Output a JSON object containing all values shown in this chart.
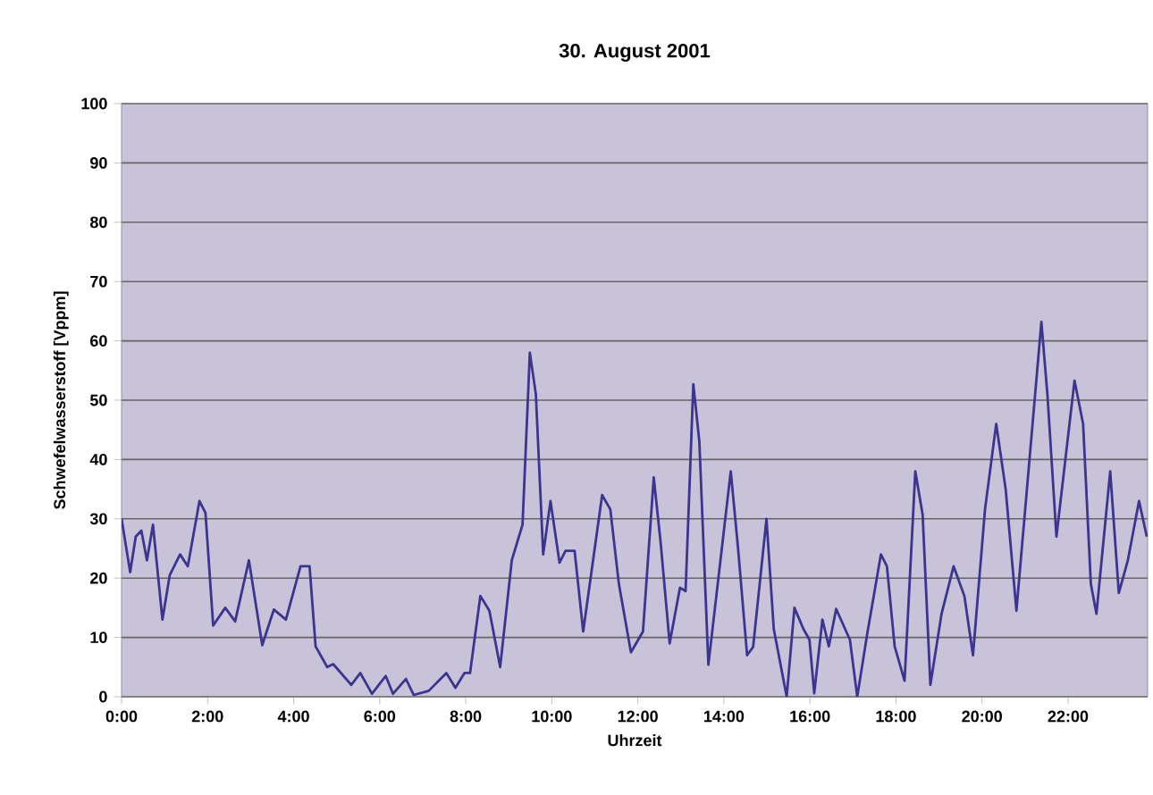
{
  "chart_data": {
    "type": "line",
    "title": "30. August 2001",
    "xlabel": "Uhrzeit",
    "ylabel": "Schwefelwasserstoff [Vppm]",
    "xlim": [
      0,
      23.85
    ],
    "ylim": [
      0,
      100
    ],
    "yticks": [
      0,
      10,
      20,
      30,
      40,
      50,
      60,
      70,
      80,
      90,
      100
    ],
    "xticks": [
      {
        "value": 0,
        "label": "0:00"
      },
      {
        "value": 2,
        "label": "2:00"
      },
      {
        "value": 4,
        "label": "4:00"
      },
      {
        "value": 6,
        "label": "6:00"
      },
      {
        "value": 8,
        "label": "8:00"
      },
      {
        "value": 10,
        "label": "10:00"
      },
      {
        "value": 12,
        "label": "12:00"
      },
      {
        "value": 14,
        "label": "14:00"
      },
      {
        "value": 16,
        "label": "16:00"
      },
      {
        "value": 18,
        "label": "18:00"
      },
      {
        "value": 20,
        "label": "20:00"
      },
      {
        "value": 22,
        "label": "22:00"
      }
    ],
    "grid": "y",
    "marker": "none",
    "line_style": "solid",
    "series": [
      {
        "color": "#3b3590",
        "x": [
          0,
          0.2,
          0.33,
          0.46,
          0.59,
          0.73,
          0.95,
          1.12,
          1.36,
          1.54,
          1.81,
          1.95,
          2.13,
          2.41,
          2.64,
          2.96,
          3.27,
          3.54,
          3.82,
          4.16,
          4.37,
          4.51,
          4.78,
          4.92,
          5.34,
          5.55,
          5.82,
          6.14,
          6.31,
          6.61,
          6.79,
          7.14,
          7.55,
          7.76,
          7.97,
          8.1,
          8.34,
          8.55,
          8.8,
          9.07,
          9.32,
          9.49,
          9.63,
          9.8,
          9.97,
          10.18,
          10.32,
          10.53,
          10.73,
          11.17,
          11.36,
          11.56,
          11.84,
          12.12,
          12.37,
          12.53,
          12.74,
          12.98,
          13.11,
          13.29,
          13.43,
          13.64,
          14.16,
          14.33,
          14.54,
          14.68,
          14.99,
          15.16,
          15.46,
          15.64,
          15.85,
          15.99,
          16.1,
          16.29,
          16.44,
          16.61,
          16.93,
          17.1,
          17.33,
          17.65,
          17.79,
          17.97,
          18.2,
          18.45,
          18.62,
          18.8,
          19.06,
          19.34,
          19.59,
          19.79,
          20.07,
          20.33,
          20.55,
          20.8,
          21.38,
          21.52,
          21.73,
          22.15,
          22.35,
          22.53,
          22.66,
          22.98,
          23.18,
          23.39,
          23.65,
          23.83
        ],
        "values": [
          30,
          21,
          27,
          28,
          23,
          29,
          13,
          20.5,
          24,
          22,
          33,
          31,
          12,
          15,
          12.7,
          23,
          8.7,
          14.7,
          13,
          22,
          22,
          8.5,
          5,
          5.5,
          2,
          4,
          0.5,
          3.5,
          0.5,
          3,
          0.3,
          1,
          4,
          1.5,
          4,
          4,
          17,
          14.5,
          5,
          23,
          29,
          58,
          51,
          24,
          33,
          22.6,
          24.6,
          24.6,
          11,
          34,
          31.6,
          19,
          7.5,
          11,
          37,
          26,
          9,
          18.4,
          17.8,
          52.7,
          43,
          5.4,
          38,
          25,
          7,
          8.4,
          30,
          11.4,
          0,
          15,
          11.4,
          9.6,
          0.6,
          13,
          8.5,
          14.8,
          9.6,
          0,
          10.5,
          24,
          22,
          8.5,
          2.7,
          38,
          30.7,
          2,
          14,
          22,
          17,
          7,
          31.6,
          46,
          35,
          14.5,
          63.2,
          51,
          27,
          53.3,
          46,
          19,
          14,
          38,
          17.5,
          23,
          33,
          27
        ]
      }
    ]
  }
}
